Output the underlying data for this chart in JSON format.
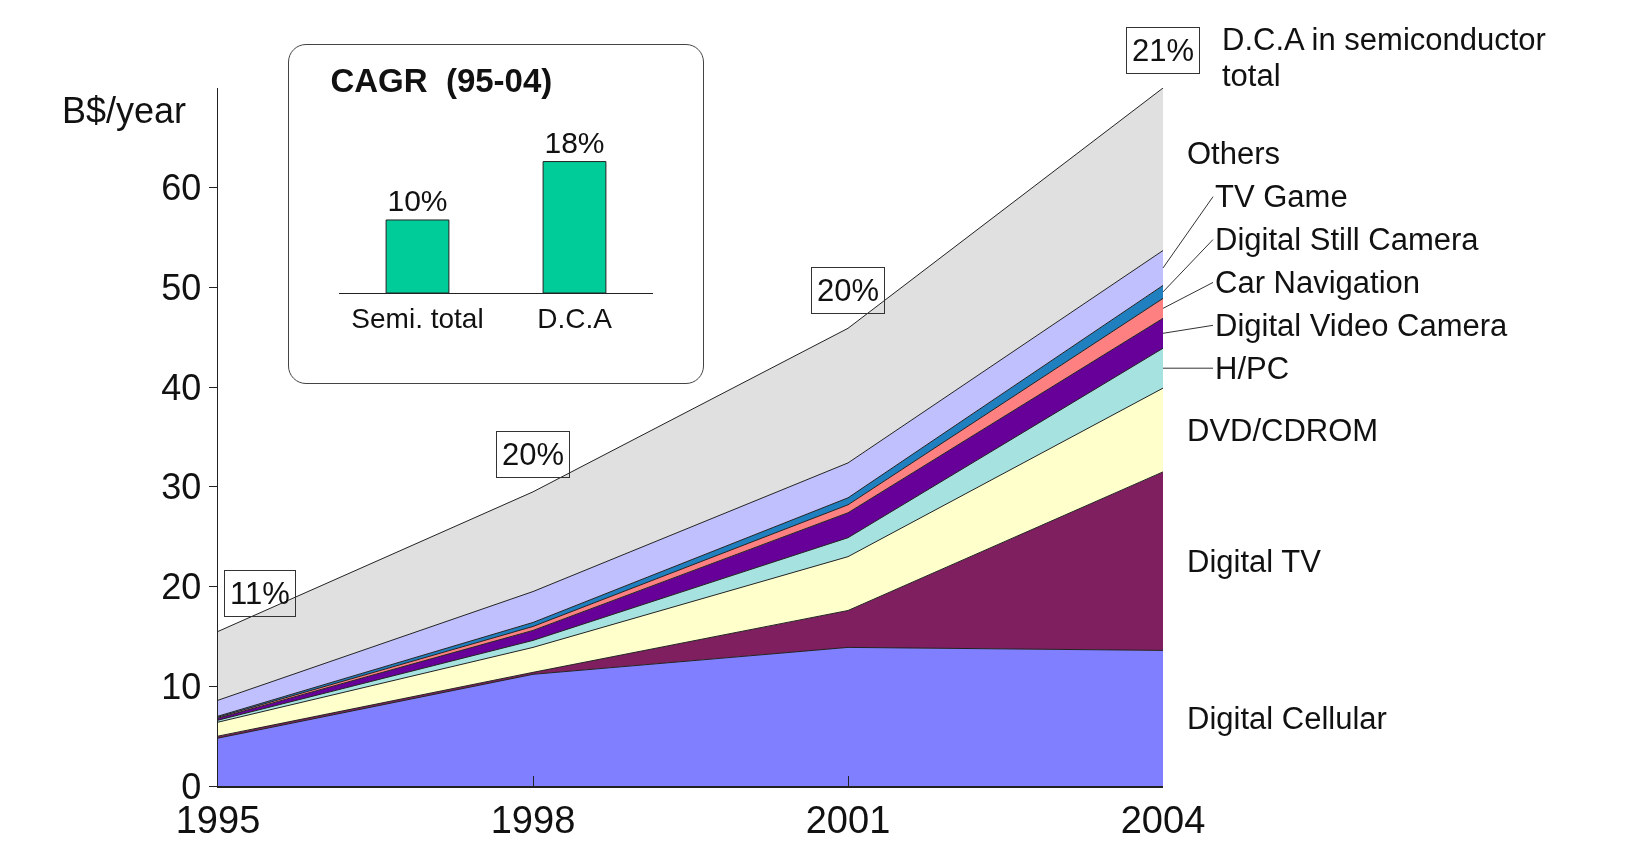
{
  "chart_data": [
    {
      "type": "area",
      "stacked": true,
      "ylabel": "B$/year",
      "x": [
        1995,
        1998,
        2001,
        2004
      ],
      "xlim": [
        1995,
        2004
      ],
      "xticks": [
        1995,
        1998,
        2001,
        2004
      ],
      "ylim": [
        0,
        70
      ],
      "yticks": [
        0,
        10,
        20,
        30,
        40,
        50,
        60
      ],
      "series": [
        {
          "name": "Digital Cellular",
          "color": "#7f7fff",
          "values": [
            4.8,
            11.2,
            13.9,
            13.6
          ]
        },
        {
          "name": "Digital TV",
          "color": "#7f1f5f",
          "values": [
            0.2,
            0.2,
            3.7,
            17.9
          ]
        },
        {
          "name": "DVD/CDROM",
          "color": "#ffffcc",
          "values": [
            1.4,
            2.5,
            5.4,
            8.4
          ]
        },
        {
          "name": "H/PC",
          "color": "#a6e3e0",
          "values": [
            0.2,
            0.7,
            1.9,
            4.0
          ]
        },
        {
          "name": "Digital Video Camera",
          "color": "#660099",
          "values": [
            0.2,
            1.0,
            2.5,
            3.0
          ]
        },
        {
          "name": "Car Navigation",
          "color": "#ff8080",
          "values": [
            0.1,
            0.4,
            0.8,
            2.0
          ]
        },
        {
          "name": "Digital Still Camera",
          "color": "#1f7fbf",
          "values": [
            0.1,
            0.4,
            0.7,
            1.3
          ]
        },
        {
          "name": "TV Game",
          "color": "#c0c0ff",
          "values": [
            1.6,
            3.1,
            3.5,
            3.5
          ]
        },
        {
          "name": "Others",
          "color": "#e0e0e0",
          "values": [
            6.9,
            10.0,
            13.5,
            16.3
          ]
        }
      ],
      "annotations": [
        "11%",
        "20%",
        "20%",
        "21%",
        "D.C.A  in semiconductor total"
      ]
    },
    {
      "type": "bar",
      "title": "CAGR  (95-04)",
      "categories": [
        "Semi. total",
        "D.C.A"
      ],
      "values": [
        10,
        18
      ],
      "value_labels": [
        "10%",
        "18%"
      ],
      "color": "#00cc99"
    }
  ]
}
